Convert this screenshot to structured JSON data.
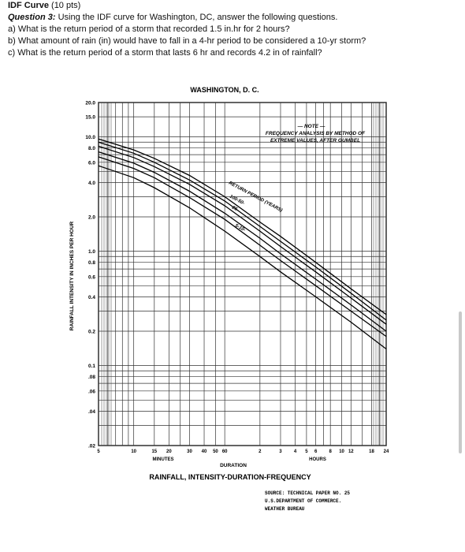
{
  "header": {
    "title": "IDF Curve",
    "points": "(10 pts)",
    "question_label": "Question 3:",
    "question_text": "Using the IDF curve for Washington, DC, answer the following questions.",
    "parts": [
      "a) What is the return period of a storm that recorded 1.5 in.hr for 2 hours?",
      "b) What amount of rain (in) would have to fall in a 4-hr period to be considered a 10-yr storm?",
      "c) What is the return period of a storm that lasts 6 hr and records 4.2 in of rainfall?"
    ]
  },
  "chart_data": {
    "type": "line",
    "title": "WASHINGTON, D. C.",
    "subtitle": "RAINFALL, INTENSITY-DURATION-FREQUENCY",
    "xlabel": "DURATION",
    "x_unit_minutes": "MINUTES",
    "x_unit_hours": "HOURS",
    "ylabel": "RAINFALL INTENSITY IN INCHES PER HOUR",
    "y_scale": "log",
    "x_scale": "log",
    "ylim": [
      0.02,
      20
    ],
    "xlim_minutes": [
      5,
      1440
    ],
    "y_ticks": [
      {
        "label": "20.0",
        "value": 20
      },
      {
        "label": "15.0",
        "value": 15
      },
      {
        "label": "10.0",
        "value": 10
      },
      {
        "label": "8.0",
        "value": 8
      },
      {
        "label": "6.0",
        "value": 6
      },
      {
        "label": "4.0",
        "value": 4
      },
      {
        "label": "2.0",
        "value": 2
      },
      {
        "label": "1.0",
        "value": 1
      },
      {
        "label": "0.8",
        "value": 0.8
      },
      {
        "label": "0.6",
        "value": 0.6
      },
      {
        "label": "0.4",
        "value": 0.4
      },
      {
        "label": "0.2",
        "value": 0.2
      },
      {
        "label": "0.1",
        "value": 0.1
      },
      {
        "label": ".08",
        "value": 0.08
      },
      {
        "label": ".06",
        "value": 0.06
      },
      {
        "label": ".04",
        "value": 0.04
      },
      {
        "label": ".02",
        "value": 0.02
      }
    ],
    "x_ticks": [
      {
        "label": "5",
        "minutes": 5
      },
      {
        "label": "10",
        "minutes": 10
      },
      {
        "label": "15",
        "minutes": 15
      },
      {
        "label": "20",
        "minutes": 20
      },
      {
        "label": "30",
        "minutes": 30
      },
      {
        "label": "40",
        "minutes": 40
      },
      {
        "label": "50",
        "minutes": 50
      },
      {
        "label": "60",
        "minutes": 60
      },
      {
        "label": "2",
        "minutes": 120
      },
      {
        "label": "3",
        "minutes": 180
      },
      {
        "label": "4",
        "minutes": 240
      },
      {
        "label": "5",
        "minutes": 300
      },
      {
        "label": "6",
        "minutes": 360
      },
      {
        "label": "8",
        "minutes": 480
      },
      {
        "label": "10",
        "minutes": 600
      },
      {
        "label": "12",
        "minutes": 720
      },
      {
        "label": "18",
        "minutes": 1080
      },
      {
        "label": "24",
        "minutes": 1440
      }
    ],
    "series": [
      {
        "name": "100",
        "points": [
          [
            5,
            9.6
          ],
          [
            10,
            7.7
          ],
          [
            15,
            6.5
          ],
          [
            30,
            4.6
          ],
          [
            60,
            3.0
          ],
          [
            120,
            1.8
          ],
          [
            180,
            1.35
          ],
          [
            360,
            0.8
          ],
          [
            720,
            0.47
          ],
          [
            1440,
            0.28
          ]
        ]
      },
      {
        "name": "50",
        "points": [
          [
            5,
            9.0
          ],
          [
            10,
            7.2
          ],
          [
            15,
            6.0
          ],
          [
            30,
            4.2
          ],
          [
            60,
            2.75
          ],
          [
            120,
            1.65
          ],
          [
            180,
            1.22
          ],
          [
            360,
            0.73
          ],
          [
            720,
            0.43
          ],
          [
            1440,
            0.25
          ]
        ]
      },
      {
        "name": "25",
        "points": [
          [
            5,
            8.3
          ],
          [
            10,
            6.6
          ],
          [
            15,
            5.5
          ],
          [
            30,
            3.85
          ],
          [
            60,
            2.5
          ],
          [
            120,
            1.5
          ],
          [
            180,
            1.1
          ],
          [
            360,
            0.66
          ],
          [
            720,
            0.39
          ],
          [
            1440,
            0.23
          ]
        ]
      },
      {
        "name": "10",
        "points": [
          [
            5,
            7.4
          ],
          [
            10,
            5.9
          ],
          [
            15,
            4.9
          ],
          [
            30,
            3.35
          ],
          [
            60,
            2.15
          ],
          [
            120,
            1.3
          ],
          [
            180,
            0.95
          ],
          [
            360,
            0.57
          ],
          [
            720,
            0.34
          ],
          [
            1440,
            0.2
          ]
        ]
      },
      {
        "name": "5",
        "points": [
          [
            5,
            6.7
          ],
          [
            10,
            5.3
          ],
          [
            15,
            4.4
          ],
          [
            30,
            2.95
          ],
          [
            60,
            1.9
          ],
          [
            120,
            1.13
          ],
          [
            180,
            0.83
          ],
          [
            360,
            0.5
          ],
          [
            720,
            0.3
          ],
          [
            1440,
            0.18
          ]
        ]
      },
      {
        "name": "2",
        "points": [
          [
            5,
            5.6
          ],
          [
            10,
            4.4
          ],
          [
            15,
            3.6
          ],
          [
            30,
            2.4
          ],
          [
            60,
            1.5
          ],
          [
            120,
            0.9
          ],
          [
            180,
            0.66
          ],
          [
            360,
            0.4
          ],
          [
            720,
            0.24
          ],
          [
            1440,
            0.14
          ]
        ]
      }
    ],
    "annotations": {
      "note_title": "— NOTE —",
      "note_line1": "FREQUENCY ANALYSIS BY METHOD OF",
      "note_line2": "EXTREME VALUES, AFTER GUMBEL",
      "return_period_label": "RETURN PERIOD (YEARS)",
      "rp_values_a": "100-50-",
      "rp_values_b": "25-",
      "rp_values_c": "5-10-"
    },
    "source": {
      "line1": "SOURCE:  TECHNICAL PAPER NO. 25",
      "line2": "U.S.DEPARTMENT OF COMMERCE.",
      "line3": "WEATHER BUREAU"
    },
    "grid": true,
    "legend": "none"
  }
}
